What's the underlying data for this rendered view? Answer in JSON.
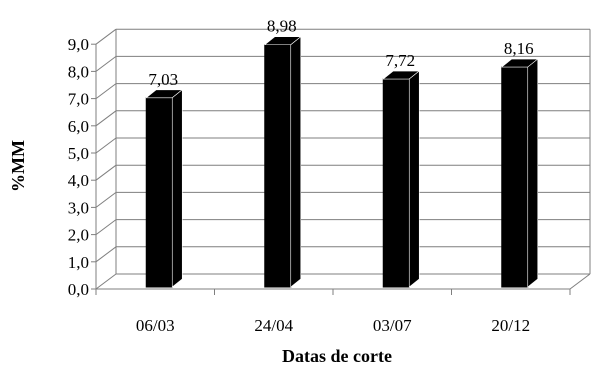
{
  "chart_data": {
    "type": "bar",
    "title": "",
    "xlabel": "Datas de corte",
    "ylabel": "%MM",
    "categories": [
      "06/03",
      "24/04",
      "03/07",
      "20/12"
    ],
    "values": [
      7.03,
      8.98,
      7.72,
      8.16
    ],
    "value_labels": [
      "7,03",
      "8,98",
      "7,72",
      "8,16"
    ],
    "ylim": [
      0,
      9
    ],
    "yticks": [
      0,
      1,
      2,
      3,
      4,
      5,
      6,
      7,
      8,
      9
    ],
    "ytick_labels": [
      "0,0",
      "1,0",
      "2,0",
      "3,0",
      "4,0",
      "5,0",
      "6,0",
      "7,0",
      "8,0",
      "9,0"
    ],
    "style": "3d-column",
    "grid": true,
    "legend": "none",
    "colors": {
      "bar": "#000000",
      "grid": "#7f7f7f",
      "text": "#000000"
    }
  }
}
